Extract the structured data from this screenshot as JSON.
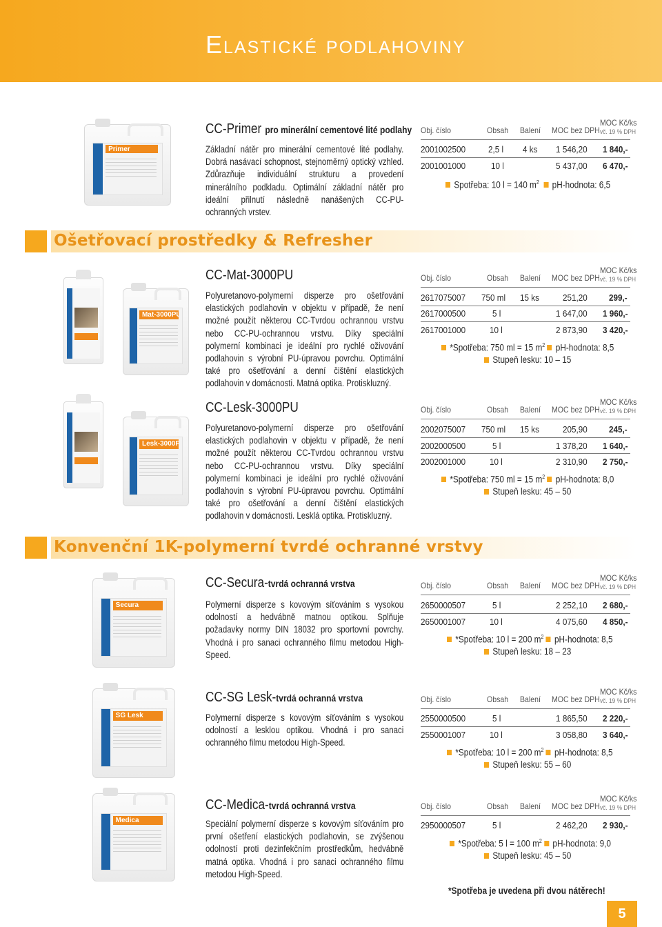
{
  "page_title": "Elastické podlahoviny",
  "page_number": "5",
  "table_header": {
    "obj": "Obj. číslo",
    "obsah": "Obsah",
    "baleni": "Balení",
    "moc": "MOC bez DPH",
    "moc_vat": "MOC Kč/ks",
    "moc_vat_note": "vč. 19 % DPH"
  },
  "sections": {
    "s1": "Ošetřovací prostředky & Refresher",
    "s2": "Konvenční 1K-polymerní tvrdé ochranné vrstvy"
  },
  "products": {
    "primer": {
      "name": "CC-Primer",
      "sub": "pro minerální cementové lité podlahy",
      "label": "Primer",
      "desc": "Základní nátěr pro minerální cementové lité podlahy. Dobrá nasávací schopnost, stejnoměrný optický vzhled. Zdůrazňuje individuální strukturu a provedení minerálního podkladu. Optimální základní nátěr pro ideální přilnutí následně nanášených CC-PU-ochranných vrstev.",
      "rows": [
        {
          "obj": "2001002500",
          "obsah": "2,5 l",
          "baleni": "4 ks",
          "moc": "1 546,20",
          "price": "1 840,-"
        },
        {
          "obj": "2001001000",
          "obsah": "10 l",
          "baleni": "",
          "moc": "5 437,00",
          "price": "6 470,-"
        }
      ],
      "note1a": "Spotřeba: 10 l = 140 m",
      "note1b": "pH-hodnota: 6,5"
    },
    "mat": {
      "name": "CC-Mat-3000PU",
      "label": "Mat-3000PU",
      "desc": "Polyuretanovo-polymerní disperze pro ošetřování elastických podlahovin v objektu v případě, že není možné použít některou CC-Tvrdou ochrannou vrstvu nebo CC-PU-ochrannou vrstvu. Díky speciální polymerní kombinaci je ideální pro rychlé oživování podlahovin s výrobní PU-úpravou povrchu. Optimální také pro ošetřování a denní čištění elastických podlahovin v domácnosti. Matná optika. Protiskluzný.",
      "rows": [
        {
          "obj": "2617075007",
          "obsah": "750 ml",
          "baleni": "15 ks",
          "moc": "251,20",
          "price": "299,-"
        },
        {
          "obj": "2617000500",
          "obsah": "5 l",
          "baleni": "",
          "moc": "1 647,00",
          "price": "1 960,-"
        },
        {
          "obj": "2617001000",
          "obsah": "10 l",
          "baleni": "",
          "moc": "2 873,90",
          "price": "3 420,-"
        }
      ],
      "note1a": "*Spotřeba: 750  ml = 15 m",
      "note1b": "pH-hodnota: 8,5",
      "note2": "Stupeň lesku: 10 – 15"
    },
    "lesk": {
      "name": "CC-Lesk-3000PU",
      "label": "Lesk-3000PU",
      "desc": "Polyuretanovo-polymerní disperze pro ošetřování elastických podlahovin v objektu v případě, že není možné použít některou CC-Tvrdou ochrannou vrstvu nebo CC-PU-ochrannou vrstvu. Díky speciální polymerní kombinaci je ideální pro rychlé oživování podlahovin s výrobní PU-úpravou povrchu. Optimální také pro ošetřování a denní čištění elastických podlahovin v domácnosti. Lesklá optika. Protiskluzný.",
      "rows": [
        {
          "obj": "2002075007",
          "obsah": "750 ml",
          "baleni": "15 ks",
          "moc": "205,90",
          "price": "245,-"
        },
        {
          "obj": "2002000500",
          "obsah": "5 l",
          "baleni": "",
          "moc": "1 378,20",
          "price": "1 640,-"
        },
        {
          "obj": "2002001000",
          "obsah": "10 l",
          "baleni": "",
          "moc": "2 310,90",
          "price": "2 750,-"
        }
      ],
      "note1a": "*Spotřeba: 750  ml = 15 m",
      "note1b": "pH-hodnota: 8,0",
      "note2": "Stupeň lesku: 45 – 50"
    },
    "secura": {
      "name": "CC-Secura-",
      "sub": "tvrdá ochranná vrstva",
      "label": "Secura",
      "desc": "Polymerní disperze s kovovým síťováním s vysokou odolností a hedvábně matnou optikou. Splňuje požadavky normy DIN 18032 pro sportovní povrchy. Vhodná i pro sanaci ochranného filmu metodou High-Speed.",
      "rows": [
        {
          "obj": "2650000507",
          "obsah": "5 l",
          "baleni": "",
          "moc": "2 252,10",
          "price": "2 680,-"
        },
        {
          "obj": "2650001007",
          "obsah": "10 l",
          "baleni": "",
          "moc": "4 075,60",
          "price": "4 850,-"
        }
      ],
      "note1a": "*Spotřeba: 10 l = 200 m",
      "note1b": "pH-hodnota: 8,5",
      "note2": "Stupeň lesku: 18 – 23"
    },
    "sg": {
      "name": "CC-SG Lesk-",
      "sub": "tvrdá ochranná vrstva",
      "label": "SG Lesk",
      "desc": "Polymerní disperze s kovovým síťováním s vysokou odolností a lesklou optikou. Vhodná i pro sanaci ochranného filmu metodou High-Speed.",
      "rows": [
        {
          "obj": "2550000500",
          "obsah": "5 l",
          "baleni": "",
          "moc": "1 865,50",
          "price": "2 220,-"
        },
        {
          "obj": "2550001007",
          "obsah": "10 l",
          "baleni": "",
          "moc": "3 058,80",
          "price": "3 640,-"
        }
      ],
      "note1a": "*Spotřeba: 10 l = 200 m",
      "note1b": "pH-hodnota: 8,5",
      "note2": "Stupeň lesku: 55 – 60"
    },
    "medica": {
      "name": "CC-Medica-",
      "sub": "tvrdá ochranná vrstva",
      "label": "Medica",
      "desc": "Speciální polymerní disperze s kovovým síťováním pro první ošetření elastických podlahovin, se zvýšenou odolností proti dezinfekčním prostředkům, hedvábně matná optika. Vhodná i pro sanaci ochranného filmu metodou High-Speed.",
      "rows": [
        {
          "obj": "2950000507",
          "obsah": "5 l",
          "baleni": "",
          "moc": "2 462,20",
          "price": "2 930,-"
        }
      ],
      "note1a": "*Spotřeba: 5 l = 100 m",
      "note1b": "pH-hodnota: 9,0",
      "note2": "Stupeň lesku: 45 – 50"
    }
  },
  "sup2": "2",
  "footnote": "*Spotřeba je uvedena při dvou nátěrech!",
  "colors": {
    "accent": "#f6a81e",
    "section_text": "#e8931a",
    "label_blue": "#1e64a8"
  }
}
